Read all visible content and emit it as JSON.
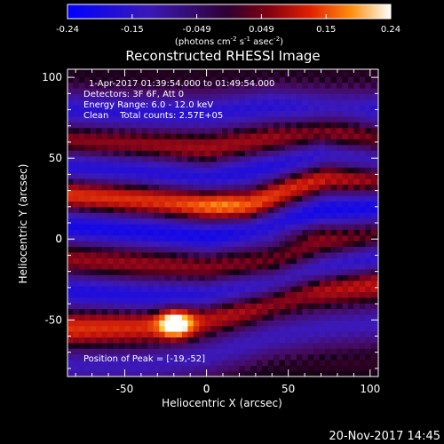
{
  "chart_data": {
    "type": "heatmap",
    "title": "Reconstructed RHESSI Image",
    "xlabel": "Heliocentric X (arcsec)",
    "ylabel": "Heliocentric Y (arcsec)",
    "xlim": [
      -85,
      105
    ],
    "ylim": [
      -85,
      105
    ],
    "xticks": [
      -50,
      0,
      50,
      100
    ],
    "yticks": [
      -50,
      0,
      50,
      100
    ],
    "colorbar": {
      "ticks": [
        "-0.24",
        "-0.15",
        "-0.049",
        "0.049",
        "0.15",
        "0.24"
      ],
      "range": [
        -0.24,
        0.24
      ],
      "units_text": "(photons cm",
      "units_sup1": "-2",
      "units_mid": " s",
      "units_sup2": "-1",
      "units_after": " asec",
      "units_sup3": "-2",
      "units_close": ")"
    },
    "annotations": [
      "1-Apr-2017 01:39:54.000 to 01:49:54.000",
      "Detectors: 3F 6F, Att 0",
      "Energy Range: 6.0 - 12.0 keV",
      "Clean    Total counts: 2.57E+05"
    ],
    "peak_label": "Position of Peak = [-19,-52]",
    "peak": {
      "x": -19,
      "y": -52
    },
    "ridges": [
      {
        "points": [
          [
            -85,
            60
          ],
          [
            -40,
            58
          ],
          [
            0,
            55
          ],
          [
            40,
            62
          ],
          [
            70,
            65
          ],
          [
            105,
            60
          ]
        ],
        "intensity": 0.08
      },
      {
        "points": [
          [
            -85,
            28
          ],
          [
            -40,
            25
          ],
          [
            0,
            22
          ],
          [
            25,
            20
          ],
          [
            50,
            32
          ],
          [
            75,
            40
          ],
          [
            105,
            38
          ]
        ],
        "intensity": 0.14
      },
      {
        "points": [
          [
            -85,
            -12
          ],
          [
            -40,
            -15
          ],
          [
            0,
            -18
          ],
          [
            40,
            -16
          ],
          [
            70,
            -5
          ],
          [
            105,
            2
          ]
        ],
        "intensity": 0.07
      },
      {
        "points": [
          [
            -85,
            -55
          ],
          [
            -40,
            -53
          ],
          [
            -10,
            -50
          ],
          [
            30,
            -40
          ],
          [
            60,
            -30
          ],
          [
            105,
            -25
          ]
        ],
        "intensity": 0.12
      }
    ],
    "troughs": [
      {
        "points": [
          [
            -85,
            80
          ],
          [
            -40,
            78
          ],
          [
            0,
            78
          ],
          [
            40,
            82
          ],
          [
            105,
            80
          ]
        ],
        "intensity": -0.16
      },
      {
        "points": [
          [
            -85,
            45
          ],
          [
            -40,
            42
          ],
          [
            0,
            38
          ],
          [
            40,
            45
          ],
          [
            70,
            52
          ],
          [
            105,
            48
          ]
        ],
        "intensity": -0.18
      },
      {
        "points": [
          [
            -85,
            8
          ],
          [
            -40,
            5
          ],
          [
            0,
            2
          ],
          [
            40,
            8
          ],
          [
            70,
            18
          ],
          [
            105,
            20
          ]
        ],
        "intensity": -0.2
      },
      {
        "points": [
          [
            -85,
            -32
          ],
          [
            -40,
            -35
          ],
          [
            0,
            -35
          ],
          [
            40,
            -28
          ],
          [
            70,
            -18
          ],
          [
            105,
            -12
          ]
        ],
        "intensity": -0.18
      },
      {
        "points": [
          [
            -85,
            -78
          ],
          [
            -40,
            -78
          ],
          [
            0,
            -72
          ],
          [
            40,
            -60
          ],
          [
            70,
            -55
          ],
          [
            105,
            -52
          ]
        ],
        "intensity": -0.12
      }
    ],
    "blobs": [
      {
        "x": -19,
        "y": -52,
        "sx": 7,
        "sy": 6,
        "amp": 0.24
      },
      {
        "x": 10,
        "y": 20,
        "sx": 18,
        "sy": 6,
        "amp": 0.06
      },
      {
        "x": 55,
        "y": 5,
        "sx": 18,
        "sy": 5,
        "amp": 0.05
      },
      {
        "x": 80,
        "y": 75,
        "sx": 15,
        "sy": 10,
        "amp": 0.04
      }
    ]
  },
  "footer_date": "20-Nov-2017 14:45",
  "colors": {
    "background": "#000000",
    "text": "#ffffff"
  }
}
